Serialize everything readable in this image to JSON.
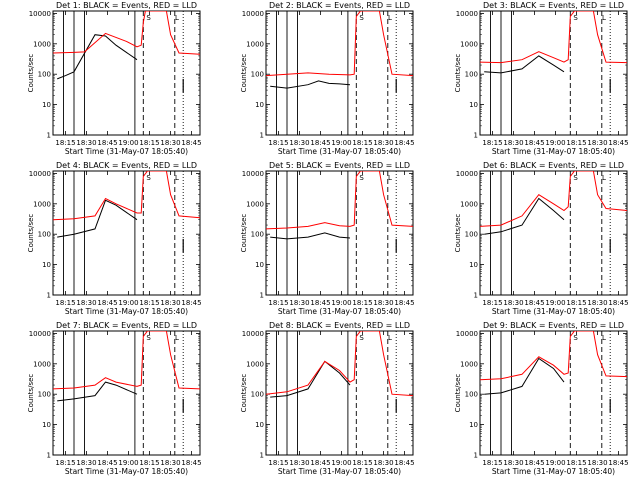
{
  "chart_data": [
    {
      "type": "line",
      "title": "Det 1: BLACK = Events, RED = LLD",
      "xlabel": "Start Time (31-May-07 18:05:40)",
      "ylabel": "Counts/sec",
      "yscale": "log",
      "ylim": [
        1,
        12000
      ],
      "xlim": [
        18.1,
        18.8
      ],
      "yticks": [
        "1",
        "10",
        "100",
        "1000",
        "10000"
      ],
      "xticks": [
        "18:15",
        "18:30",
        "18:45",
        "19:00",
        "18:15",
        "18:30",
        "18:45"
      ],
      "vlines_solid": [
        18.15,
        18.2,
        18.25,
        18.49
      ],
      "vlines_dashed": [
        18.53,
        18.68
      ],
      "vlines_dotted": [
        18.72
      ],
      "markers": [
        "S",
        "L"
      ],
      "series": [
        {
          "color": "#000000",
          "x": [
            18.12,
            18.16,
            18.2,
            18.3,
            18.35,
            18.4,
            18.5
          ],
          "y": [
            70,
            90,
            120,
            2000,
            1800,
            900,
            300
          ]
        },
        {
          "color": "#ff0000",
          "x": [
            18.1,
            18.2,
            18.25,
            18.35,
            18.45,
            18.5,
            18.52,
            18.53,
            18.54,
            18.55,
            18.58,
            18.62,
            18.64,
            18.66,
            18.7,
            18.8
          ],
          "y": [
            500,
            520,
            540,
            2200,
            1200,
            800,
            900,
            5000,
            15000,
            15000,
            15000,
            15000,
            15000,
            2000,
            500,
            450
          ]
        }
      ]
    },
    {
      "type": "line",
      "title": "Det 2: BLACK = Events, RED = LLD",
      "xlabel": "Start Time (31-May-07 18:05:40)",
      "ylabel": "Counts/sec",
      "yscale": "log",
      "ylim": [
        1,
        12000
      ],
      "xlim": [
        18.1,
        18.8
      ],
      "yticks": [
        "1",
        "10",
        "100",
        "1000",
        "10000"
      ],
      "xticks": [
        "18:15",
        "18:30",
        "18:45",
        "19:00",
        "18:15",
        "18:30",
        "18:45"
      ],
      "vlines_solid": [
        18.15,
        18.2,
        18.25,
        18.49
      ],
      "vlines_dashed": [
        18.53,
        18.68
      ],
      "vlines_dotted": [
        18.72
      ],
      "markers": [
        "S",
        "L"
      ],
      "series": [
        {
          "color": "#000000",
          "x": [
            18.12,
            18.2,
            18.3,
            18.35,
            18.4,
            18.45,
            18.5
          ],
          "y": [
            40,
            35,
            45,
            60,
            50,
            48,
            45
          ]
        },
        {
          "color": "#ff0000",
          "x": [
            18.1,
            18.2,
            18.3,
            18.4,
            18.5,
            18.52,
            18.53,
            18.55,
            18.62,
            18.64,
            18.66,
            18.7,
            18.8
          ],
          "y": [
            90,
            100,
            110,
            100,
            95,
            100,
            8000,
            15000,
            15000,
            15000,
            2000,
            100,
            90
          ]
        }
      ]
    },
    {
      "type": "line",
      "title": "Det 3: BLACK = Events, RED = LLD",
      "xlabel": "Start Time (31-May-07 18:05:40)",
      "ylabel": "Counts/sec",
      "yscale": "log",
      "ylim": [
        1,
        12000
      ],
      "xlim": [
        18.1,
        18.8
      ],
      "yticks": [
        "1",
        "10",
        "100",
        "1000",
        "10000"
      ],
      "xticks": [
        "18:15",
        "18:30",
        "18:45",
        "19:00",
        "18:15",
        "18:30",
        "18:45"
      ],
      "vlines_solid": [
        18.15,
        18.2,
        18.25
      ],
      "vlines_dashed": [
        18.53,
        18.68
      ],
      "vlines_dotted": [
        18.72
      ],
      "markers": [
        "S",
        "L"
      ],
      "series": [
        {
          "color": "#000000",
          "x": [
            18.12,
            18.2,
            18.3,
            18.38,
            18.45,
            18.5
          ],
          "y": [
            120,
            110,
            150,
            400,
            200,
            120
          ]
        },
        {
          "color": "#ff0000",
          "x": [
            18.1,
            18.2,
            18.3,
            18.38,
            18.45,
            18.5,
            18.52,
            18.53,
            18.55,
            18.62,
            18.64,
            18.66,
            18.7,
            18.8
          ],
          "y": [
            250,
            240,
            300,
            550,
            350,
            250,
            300,
            8000,
            15000,
            15000,
            15000,
            2000,
            250,
            240
          ]
        }
      ]
    },
    {
      "type": "line",
      "title": "Det 4: BLACK = Events, RED = LLD",
      "xlabel": "Start Time (31-May-07 18:05:40)",
      "ylabel": "Counts/sec",
      "yscale": "log",
      "ylim": [
        1,
        12000
      ],
      "xlim": [
        18.1,
        18.8
      ],
      "yticks": [
        "1",
        "10",
        "100",
        "1000",
        "10000"
      ],
      "xticks": [
        "18:15",
        "18:30",
        "18:45",
        "19:00",
        "18:15",
        "18:30",
        "18:45"
      ],
      "vlines_solid": [
        18.15,
        18.2,
        18.25,
        18.49
      ],
      "vlines_dashed": [
        18.53,
        18.68
      ],
      "vlines_dotted": [
        18.72
      ],
      "markers": [
        "S",
        "L"
      ],
      "series": [
        {
          "color": "#000000",
          "x": [
            18.12,
            18.2,
            18.3,
            18.35,
            18.4,
            18.5
          ],
          "y": [
            80,
            100,
            150,
            1300,
            900,
            300
          ]
        },
        {
          "color": "#ff0000",
          "x": [
            18.1,
            18.2,
            18.3,
            18.35,
            18.4,
            18.5,
            18.52,
            18.53,
            18.55,
            18.62,
            18.64,
            18.66,
            18.7,
            18.8
          ],
          "y": [
            300,
            320,
            400,
            1500,
            1000,
            500,
            500,
            8000,
            15000,
            15000,
            15000,
            2000,
            400,
            350
          ]
        }
      ]
    },
    {
      "type": "line",
      "title": "Det 5: BLACK = Events, RED = LLD",
      "xlabel": "Start Time (31-May-07 18:05:40)",
      "ylabel": "Counts/sec",
      "yscale": "log",
      "ylim": [
        1,
        12000
      ],
      "xlim": [
        18.1,
        18.8
      ],
      "yticks": [
        "1",
        "10",
        "100",
        "1000",
        "10000"
      ],
      "xticks": [
        "18:15",
        "18:30",
        "18:45",
        "19:00",
        "18:15",
        "18:30",
        "18:45"
      ],
      "vlines_solid": [
        18.15,
        18.2,
        18.25,
        18.49
      ],
      "vlines_dashed": [
        18.53,
        18.68
      ],
      "vlines_dotted": [
        18.72
      ],
      "markers": [
        "S",
        "L"
      ],
      "series": [
        {
          "color": "#000000",
          "x": [
            18.12,
            18.2,
            18.3,
            18.38,
            18.45,
            18.5
          ],
          "y": [
            80,
            70,
            80,
            110,
            80,
            75
          ]
        },
        {
          "color": "#ff0000",
          "x": [
            18.1,
            18.2,
            18.3,
            18.38,
            18.45,
            18.5,
            18.52,
            18.53,
            18.55,
            18.62,
            18.64,
            18.66,
            18.7,
            18.8
          ],
          "y": [
            150,
            160,
            180,
            240,
            190,
            180,
            200,
            8000,
            15000,
            15000,
            15000,
            2000,
            200,
            180
          ]
        }
      ]
    },
    {
      "type": "line",
      "title": "Det 6: BLACK = Events, RED = LLD",
      "xlabel": "Start Time (31-May-07 18:05:40)",
      "ylabel": "Counts/sec",
      "yscale": "log",
      "ylim": [
        1,
        12000
      ],
      "xlim": [
        18.1,
        18.8
      ],
      "yticks": [
        "1",
        "10",
        "100",
        "1000",
        "10000"
      ],
      "xticks": [
        "18:15",
        "18:30",
        "18:45",
        "19:00",
        "18:15",
        "18:30",
        "18:45"
      ],
      "vlines_solid": [
        18.15,
        18.2,
        18.25
      ],
      "vlines_dashed": [
        18.53,
        18.68
      ],
      "vlines_dotted": [
        18.72
      ],
      "markers": [
        "S",
        "L"
      ],
      "series": [
        {
          "color": "#000000",
          "x": [
            18.12,
            18.2,
            18.3,
            18.38,
            18.45,
            18.5
          ],
          "y": [
            100,
            120,
            200,
            1500,
            600,
            300
          ]
        },
        {
          "color": "#ff0000",
          "x": [
            18.1,
            18.2,
            18.3,
            18.38,
            18.45,
            18.5,
            18.52,
            18.53,
            18.55,
            18.62,
            18.64,
            18.66,
            18.7,
            18.8
          ],
          "y": [
            180,
            200,
            400,
            2000,
            1000,
            600,
            800,
            8000,
            15000,
            15000,
            15000,
            2000,
            700,
            600
          ]
        }
      ]
    },
    {
      "type": "line",
      "title": "Det 7: BLACK = Events, RED = LLD",
      "xlabel": "Start Time (31-May-07 18:05:40)",
      "ylabel": "Counts/sec",
      "yscale": "log",
      "ylim": [
        1,
        12000
      ],
      "xlim": [
        18.1,
        18.8
      ],
      "yticks": [
        "1",
        "10",
        "100",
        "1000",
        "10000"
      ],
      "xticks": [
        "18:15",
        "18:30",
        "18:45",
        "19:00",
        "18:15",
        "18:30",
        "18:45"
      ],
      "vlines_solid": [
        18.15,
        18.2,
        18.25,
        18.49
      ],
      "vlines_dashed": [
        18.53,
        18.68
      ],
      "vlines_dotted": [
        18.72
      ],
      "markers": [
        "S",
        "L"
      ],
      "series": [
        {
          "color": "#000000",
          "x": [
            18.12,
            18.2,
            18.3,
            18.35,
            18.4,
            18.5
          ],
          "y": [
            60,
            70,
            90,
            250,
            200,
            100
          ]
        },
        {
          "color": "#ff0000",
          "x": [
            18.1,
            18.2,
            18.3,
            18.35,
            18.4,
            18.5,
            18.52,
            18.53,
            18.55,
            18.62,
            18.64,
            18.66,
            18.7,
            18.8
          ],
          "y": [
            150,
            160,
            200,
            350,
            250,
            180,
            200,
            8000,
            15000,
            15000,
            15000,
            2000,
            160,
            150
          ]
        }
      ]
    },
    {
      "type": "line",
      "title": "Det 8: BLACK = Events, RED = LLD",
      "xlabel": "Start Time (31-May-07 18:05:40)",
      "ylabel": "Counts/sec",
      "yscale": "log",
      "ylim": [
        1,
        12000
      ],
      "xlim": [
        18.1,
        18.8
      ],
      "yticks": [
        "1",
        "10",
        "100",
        "1000",
        "10000"
      ],
      "xticks": [
        "18:15",
        "18:30",
        "18:45",
        "19:00",
        "18:15",
        "18:30",
        "18:45"
      ],
      "vlines_solid": [
        18.15,
        18.2,
        18.25,
        18.49
      ],
      "vlines_dashed": [
        18.53,
        18.68
      ],
      "vlines_dotted": [
        18.72
      ],
      "markers": [
        "S",
        "L"
      ],
      "series": [
        {
          "color": "#000000",
          "x": [
            18.12,
            18.2,
            18.3,
            18.38,
            18.45,
            18.5
          ],
          "y": [
            80,
            90,
            150,
            1200,
            500,
            200
          ]
        },
        {
          "color": "#ff0000",
          "x": [
            18.1,
            18.2,
            18.3,
            18.38,
            18.45,
            18.5,
            18.52,
            18.53,
            18.55,
            18.62,
            18.64,
            18.66,
            18.7,
            18.8
          ],
          "y": [
            100,
            120,
            200,
            1200,
            600,
            250,
            300,
            8000,
            15000,
            15000,
            15000,
            2000,
            100,
            90
          ]
        }
      ]
    },
    {
      "type": "line",
      "title": "Det 9: BLACK = Events, RED = LLD",
      "xlabel": "Start Time (31-May-07 18:05:40)",
      "ylabel": "Counts/sec",
      "yscale": "log",
      "ylim": [
        1,
        12000
      ],
      "xlim": [
        18.1,
        18.8
      ],
      "yticks": [
        "1",
        "10",
        "100",
        "1000",
        "10000"
      ],
      "xticks": [
        "18:15",
        "18:30",
        "18:45",
        "19:00",
        "18:15",
        "18:30",
        "18:45"
      ],
      "vlines_solid": [
        18.15,
        18.2,
        18.25
      ],
      "vlines_dashed": [
        18.53,
        18.68
      ],
      "vlines_dotted": [
        18.72
      ],
      "markers": [
        "S",
        "L"
      ],
      "series": [
        {
          "color": "#000000",
          "x": [
            18.12,
            18.2,
            18.3,
            18.38,
            18.45,
            18.5
          ],
          "y": [
            100,
            110,
            180,
            1500,
            700,
            250
          ]
        },
        {
          "color": "#ff0000",
          "x": [
            18.1,
            18.2,
            18.3,
            18.38,
            18.45,
            18.5,
            18.52,
            18.53,
            18.55,
            18.62,
            18.64,
            18.66,
            18.7,
            18.8
          ],
          "y": [
            300,
            320,
            450,
            1700,
            900,
            450,
            500,
            8000,
            15000,
            15000,
            15000,
            2000,
            400,
            380
          ]
        }
      ]
    }
  ]
}
